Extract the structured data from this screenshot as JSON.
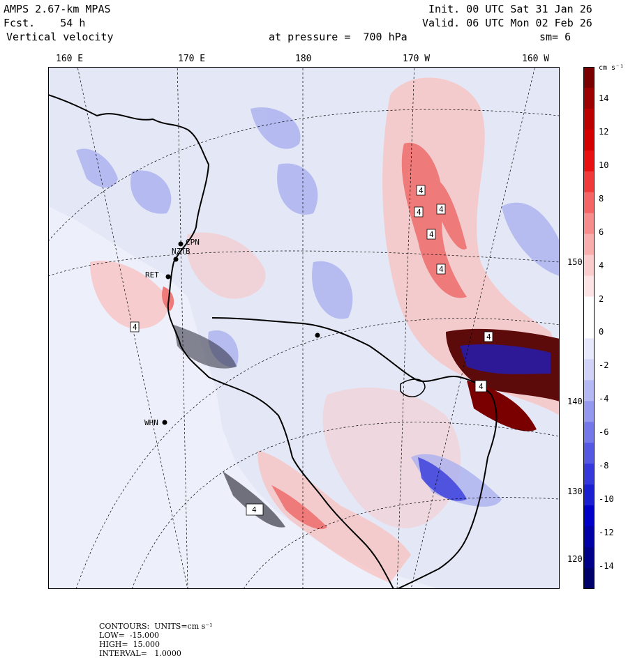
{
  "header": {
    "model": "AMPS 2.67-km MPAS",
    "fcst": "Fcst.    54 h",
    "field": "Vertical velocity",
    "init": "Init. 00 UTC Sat 31 Jan 26",
    "valid": "Valid. 06 UTC Mon 02 Feb 26",
    "pressure": "at pressure =  700 hPa",
    "smooth": "sm= 6"
  },
  "map": {
    "lon_labels": [
      "160 E",
      "170 E",
      "180",
      "170 W",
      "160 W"
    ],
    "lat_labels": [
      "150 W",
      "140 W",
      "130 W",
      "120 W"
    ],
    "stations": [
      "CPN",
      "NZTB",
      "RET",
      "WHN"
    ],
    "box_labels": [
      "4",
      "4",
      "4",
      "4",
      "4",
      "4",
      "4",
      "4",
      "4"
    ],
    "colors": {
      "land": "#e8ecf8",
      "ocean_bg": "#e4e8f6",
      "coast": "#000000"
    }
  },
  "colorbar": {
    "unit": "cm s⁻¹",
    "ticks": [
      "14",
      "12",
      "10",
      "8",
      "6",
      "4",
      "2",
      "0",
      "-2",
      "-4",
      "-6",
      "-8",
      "-10",
      "-12",
      "-14"
    ],
    "colors": [
      "#7a0000",
      "#9c0000",
      "#bb0000",
      "#d40000",
      "#e81010",
      "#f03a3a",
      "#f56565",
      "#f78c8c",
      "#f9aeae",
      "#fbcccc",
      "#fde4e4",
      "#ffffff",
      "#ffffff",
      "#e8e8fc",
      "#d0d2f8",
      "#b4b8f3",
      "#9498ee",
      "#7478e8",
      "#5558e2",
      "#3539db",
      "#1a1fd2",
      "#0000c8",
      "#0000a6",
      "#000088",
      "#00006a"
    ]
  },
  "footer": {
    "contours": "CONTOURS:  UNITS=cm s⁻¹",
    "low": "LOW=  -15.000",
    "high": "HIGH=  15.000",
    "interval": "INTERVAL=   1.0000"
  }
}
